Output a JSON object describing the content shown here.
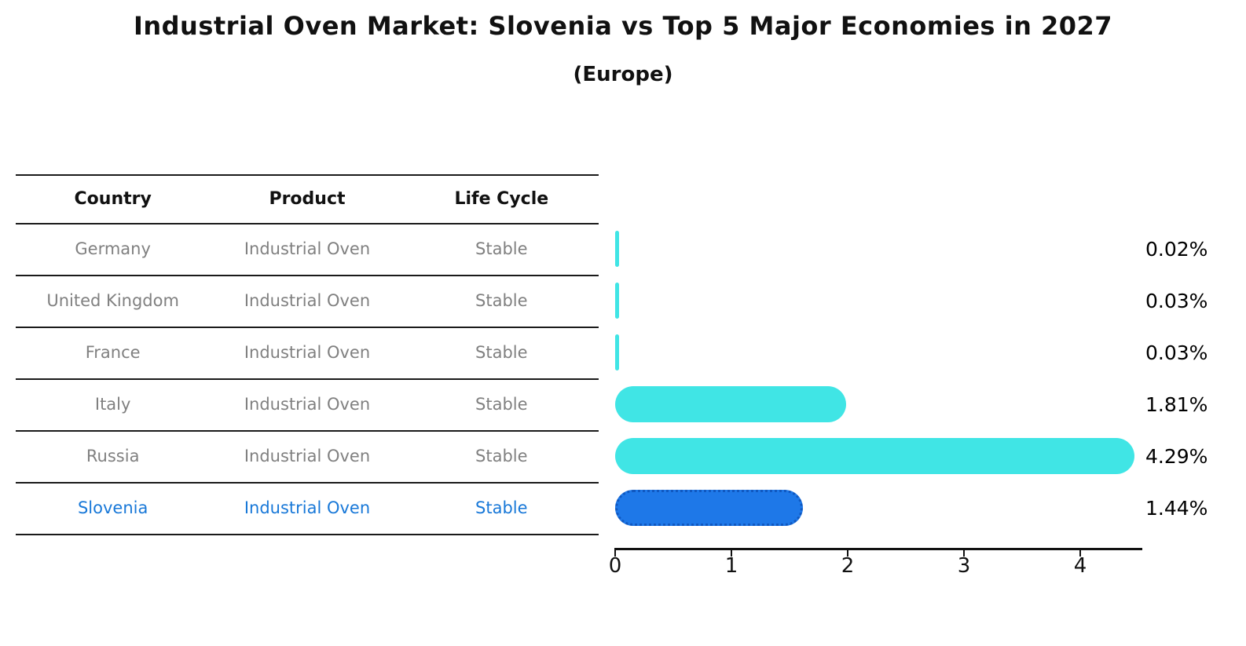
{
  "title": "Industrial Oven Market: Slovenia vs Top 5 Major Economies in 2027",
  "subtitle": "(Europe)",
  "table": {
    "headers": [
      "Country",
      "Product",
      "Life Cycle"
    ]
  },
  "chart_data": {
    "type": "bar",
    "orientation": "horizontal",
    "title": "Industrial Oven Market: Slovenia vs Top 5 Major Economies in 2027",
    "subtitle": "(Europe)",
    "xlim": [
      0,
      4.5
    ],
    "x_ticks": [
      0,
      1,
      2,
      3,
      4
    ],
    "rows": [
      {
        "country": "Germany",
        "product": "Industrial Oven",
        "life_cycle": "Stable",
        "value": 0.02,
        "label": "0.02%",
        "highlight": false
      },
      {
        "country": "United Kingdom",
        "product": "Industrial Oven",
        "life_cycle": "Stable",
        "value": 0.03,
        "label": "0.03%",
        "highlight": false
      },
      {
        "country": "France",
        "product": "Industrial Oven",
        "life_cycle": "Stable",
        "value": 0.03,
        "label": "0.03%",
        "highlight": false
      },
      {
        "country": "Italy",
        "product": "Industrial Oven",
        "life_cycle": "Stable",
        "value": 1.81,
        "label": "1.81%",
        "highlight": false
      },
      {
        "country": "Russia",
        "product": "Industrial Oven",
        "life_cycle": "Stable",
        "value": 4.29,
        "label": "4.29%",
        "highlight": false
      },
      {
        "country": "Slovenia",
        "product": "Industrial Oven",
        "life_cycle": "Stable",
        "value": 1.44,
        "label": "1.44%",
        "highlight": true
      }
    ],
    "colors": {
      "bar": "#40e5e5",
      "highlight_bar": "#1e78e8",
      "highlight_border": "#1058c0",
      "highlight_text": "#1878d8",
      "muted_text": "#808080"
    }
  }
}
